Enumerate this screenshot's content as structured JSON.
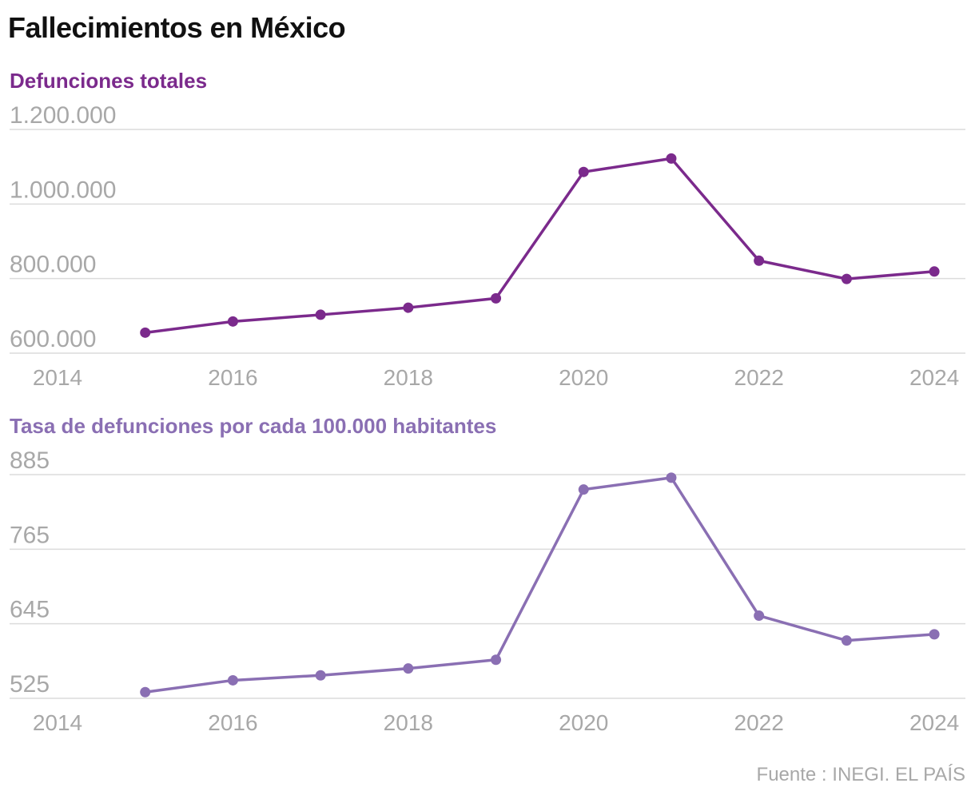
{
  "page_title": "Fallecimientos en México",
  "source": "Fuente : INEGI. EL PAÍS",
  "chart_data": [
    {
      "type": "line",
      "title": "Defunciones totales",
      "title_color": "#7b2a8c",
      "line_color": "#7b2a8c",
      "x": [
        2015,
        2016,
        2017,
        2018,
        2019,
        2020,
        2021,
        2022,
        2023,
        2024
      ],
      "series": [
        {
          "values": [
            655000,
            685000,
            703000,
            722000,
            747000,
            1086000,
            1122000,
            848000,
            799000,
            819000
          ]
        }
      ],
      "y_ticks": [
        600000,
        800000,
        1000000,
        1200000
      ],
      "y_tick_labels": [
        "600.000",
        "800.000",
        "1.000.000",
        "1.200.000"
      ],
      "x_ticks": [
        2014,
        2016,
        2018,
        2020,
        2022,
        2024
      ],
      "x_tick_labels": [
        "2014",
        "2016",
        "2018",
        "2020",
        "2022",
        "2024"
      ],
      "xlim": [
        2014,
        2024.3
      ],
      "ylim": [
        600000,
        1200000
      ],
      "grid": true
    },
    {
      "type": "line",
      "title": "Tasa de defunciones por cada 100.000 habitantes",
      "title_color": "#8a6fb3",
      "line_color": "#8a6fb3",
      "x": [
        2015,
        2016,
        2017,
        2018,
        2019,
        2020,
        2021,
        2022,
        2023,
        2024
      ],
      "series": [
        {
          "values": [
            535,
            554,
            562,
            573,
            587,
            861,
            880,
            658,
            618,
            628
          ]
        }
      ],
      "y_ticks": [
        525,
        645,
        765,
        885
      ],
      "y_tick_labels": [
        "525",
        "645",
        "765",
        "885"
      ],
      "x_ticks": [
        2014,
        2016,
        2018,
        2020,
        2022,
        2024
      ],
      "x_tick_labels": [
        "2014",
        "2016",
        "2018",
        "2020",
        "2022",
        "2024"
      ],
      "xlim": [
        2014,
        2024.3
      ],
      "ylim": [
        525,
        885
      ],
      "grid": true
    }
  ]
}
